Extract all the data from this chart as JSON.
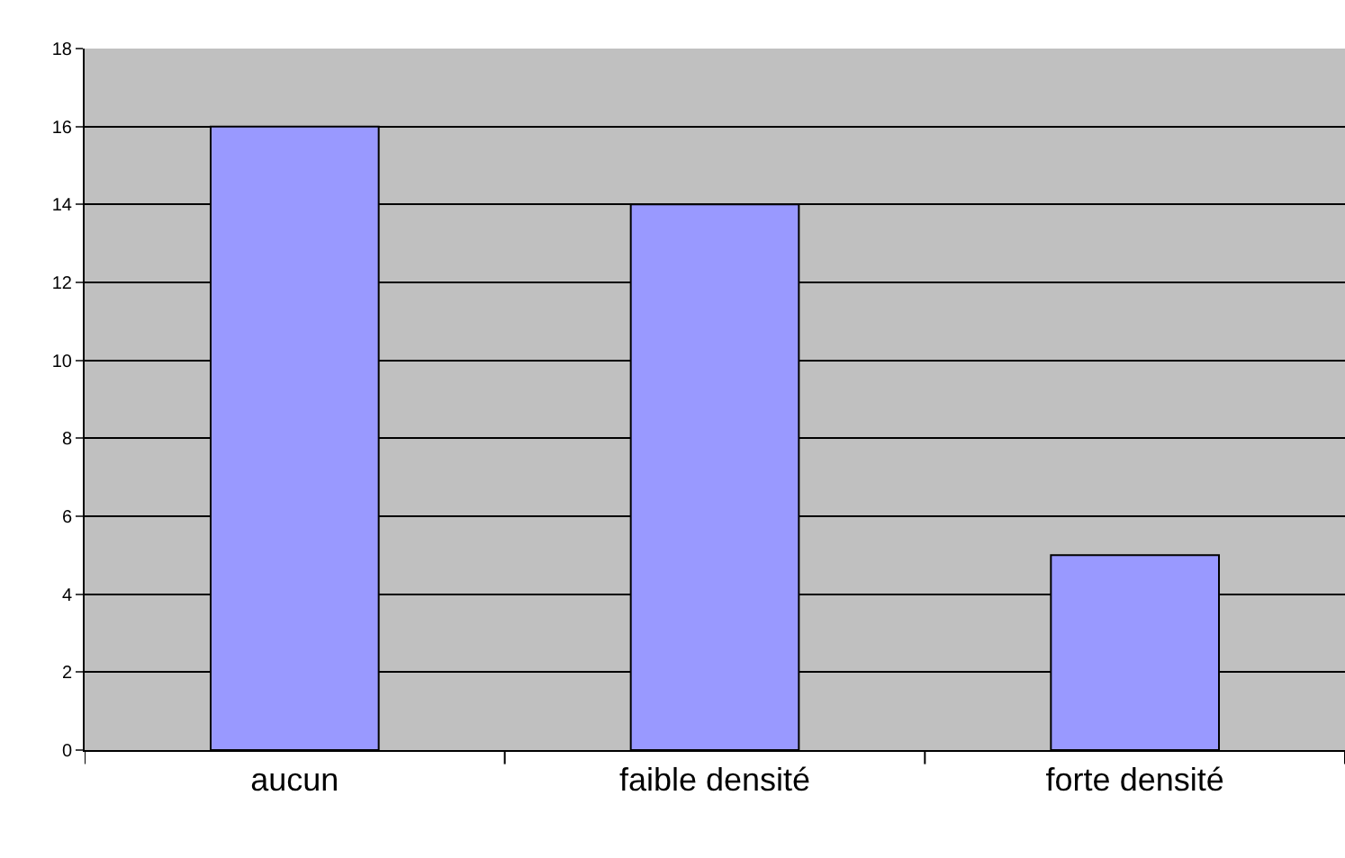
{
  "chart_data": {
    "type": "bar",
    "categories": [
      "aucun",
      "faible densité",
      "forte densité"
    ],
    "series": [
      {
        "color": "#9999ff",
        "values": [
          16,
          14,
          5
        ]
      }
    ],
    "ylim": [
      0,
      18
    ],
    "yticks": [
      0,
      2,
      4,
      6,
      8,
      10,
      12,
      14,
      16,
      18
    ],
    "grid": "y"
  }
}
